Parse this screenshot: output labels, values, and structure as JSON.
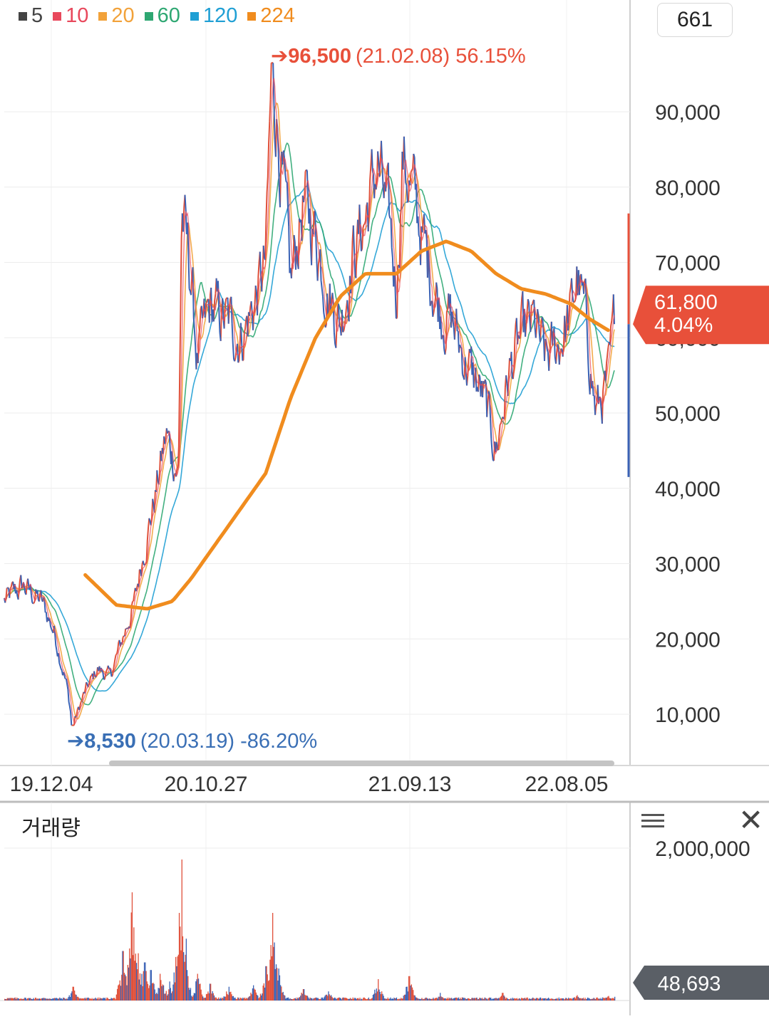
{
  "legend": [
    {
      "label": "5",
      "color": "#444444"
    },
    {
      "label": "10",
      "color": "#e8485c"
    },
    {
      "label": "20",
      "color": "#f2a23a"
    },
    {
      "label": "60",
      "color": "#2ea772"
    },
    {
      "label": "120",
      "color": "#1f9fd4"
    },
    {
      "label": "224",
      "color": "#f08c1e"
    }
  ],
  "count_box": "661",
  "price_panel": {
    "current_price": "61,800",
    "change_pct": "4.04%",
    "current_color": "#e8503a"
  },
  "volume_panel": {
    "title": "거래량",
    "current_volume": "48,693"
  },
  "chart_data": [
    {
      "type": "line",
      "title": "",
      "ylim": [
        3000,
        100000
      ],
      "yticks": [
        10000,
        20000,
        30000,
        40000,
        50000,
        60000,
        70000,
        80000,
        90000
      ],
      "ytick_labels": [
        "10,000",
        "20,000",
        "30,000",
        "40,000",
        "50,000",
        "60,000",
        "70,000",
        "80,000",
        "90,000"
      ],
      "xtick_labels": [
        "19.12.04",
        "20.10.27",
        "21.09.13",
        "22.08.05"
      ],
      "grid": true,
      "legend_position": "top-left",
      "annotations": {
        "high": {
          "value": 96500,
          "label": "96,500",
          "date": "(21.02.08)",
          "change": "56.15%",
          "color": "#e8503a"
        },
        "low": {
          "value": 8530,
          "label": "8,530",
          "date": "(20.03.19)",
          "change": "-86.20%",
          "color": "#3a6fb5"
        }
      },
      "current": {
        "value": 61800
      },
      "price_keypoints": [
        [
          0.0,
          25000
        ],
        [
          0.03,
          27000
        ],
        [
          0.06,
          25000
        ],
        [
          0.08,
          21000
        ],
        [
          0.1,
          14000
        ],
        [
          0.11,
          8530
        ],
        [
          0.13,
          13000
        ],
        [
          0.15,
          16000
        ],
        [
          0.17,
          15000
        ],
        [
          0.19,
          20000
        ],
        [
          0.21,
          25000
        ],
        [
          0.22,
          30000
        ],
        [
          0.24,
          38000
        ],
        [
          0.26,
          47000
        ],
        [
          0.28,
          42000
        ],
        [
          0.285,
          77000
        ],
        [
          0.3,
          68000
        ],
        [
          0.31,
          57000
        ],
        [
          0.33,
          64000
        ],
        [
          0.36,
          62000
        ],
        [
          0.38,
          60000
        ],
        [
          0.4,
          64000
        ],
        [
          0.42,
          70000
        ],
        [
          0.43,
          96500
        ],
        [
          0.45,
          78000
        ],
        [
          0.46,
          67000
        ],
        [
          0.48,
          78000
        ],
        [
          0.5,
          74000
        ],
        [
          0.52,
          66000
        ],
        [
          0.54,
          62000
        ],
        [
          0.56,
          71000
        ],
        [
          0.58,
          76000
        ],
        [
          0.6,
          83000
        ],
        [
          0.62,
          74000
        ],
        [
          0.63,
          66000
        ],
        [
          0.64,
          84000
        ],
        [
          0.66,
          78000
        ],
        [
          0.68,
          70000
        ],
        [
          0.7,
          64000
        ],
        [
          0.72,
          62000
        ],
        [
          0.74,
          57000
        ],
        [
          0.77,
          52000
        ],
        [
          0.79,
          45000
        ],
        [
          0.81,
          55000
        ],
        [
          0.83,
          60000
        ],
        [
          0.85,
          62000
        ],
        [
          0.87,
          57000
        ],
        [
          0.89,
          59000
        ],
        [
          0.91,
          63000
        ],
        [
          0.92,
          68000
        ],
        [
          0.935,
          62000
        ],
        [
          0.95,
          50000
        ],
        [
          0.97,
          54000
        ],
        [
          0.98,
          61800
        ]
      ],
      "ma224_keypoints": [
        [
          0.13,
          28500
        ],
        [
          0.18,
          24500
        ],
        [
          0.23,
          24000
        ],
        [
          0.27,
          25000
        ],
        [
          0.3,
          28000
        ],
        [
          0.36,
          35000
        ],
        [
          0.42,
          42000
        ],
        [
          0.46,
          52000
        ],
        [
          0.5,
          60000
        ],
        [
          0.54,
          65500
        ],
        [
          0.58,
          68500
        ],
        [
          0.63,
          68500
        ],
        [
          0.67,
          71500
        ],
        [
          0.71,
          72800
        ],
        [
          0.75,
          71500
        ],
        [
          0.79,
          68500
        ],
        [
          0.83,
          66500
        ],
        [
          0.87,
          65800
        ],
        [
          0.91,
          64500
        ],
        [
          0.94,
          62500
        ],
        [
          0.97,
          61000
        ]
      ]
    },
    {
      "type": "bar",
      "title": "거래량",
      "ylim": [
        0,
        2400000
      ],
      "yticks": [
        2000000
      ],
      "ytick_labels": [
        "2,000,000"
      ],
      "current": {
        "value": 48693
      },
      "volume_spikes": [
        [
          0.11,
          180000
        ],
        [
          0.19,
          650000
        ],
        [
          0.205,
          1420000
        ],
        [
          0.215,
          620000
        ],
        [
          0.225,
          500000
        ],
        [
          0.235,
          400000
        ],
        [
          0.25,
          350000
        ],
        [
          0.265,
          250000
        ],
        [
          0.28,
          1150000
        ],
        [
          0.285,
          1850000
        ],
        [
          0.29,
          600000
        ],
        [
          0.31,
          350000
        ],
        [
          0.33,
          220000
        ],
        [
          0.36,
          180000
        ],
        [
          0.4,
          200000
        ],
        [
          0.42,
          450000
        ],
        [
          0.43,
          1150000
        ],
        [
          0.44,
          420000
        ],
        [
          0.48,
          150000
        ],
        [
          0.52,
          120000
        ],
        [
          0.6,
          280000
        ],
        [
          0.65,
          320000
        ],
        [
          0.7,
          100000
        ],
        [
          0.8,
          100000
        ],
        [
          0.92,
          70000
        ],
        [
          0.97,
          60000
        ]
      ]
    }
  ]
}
